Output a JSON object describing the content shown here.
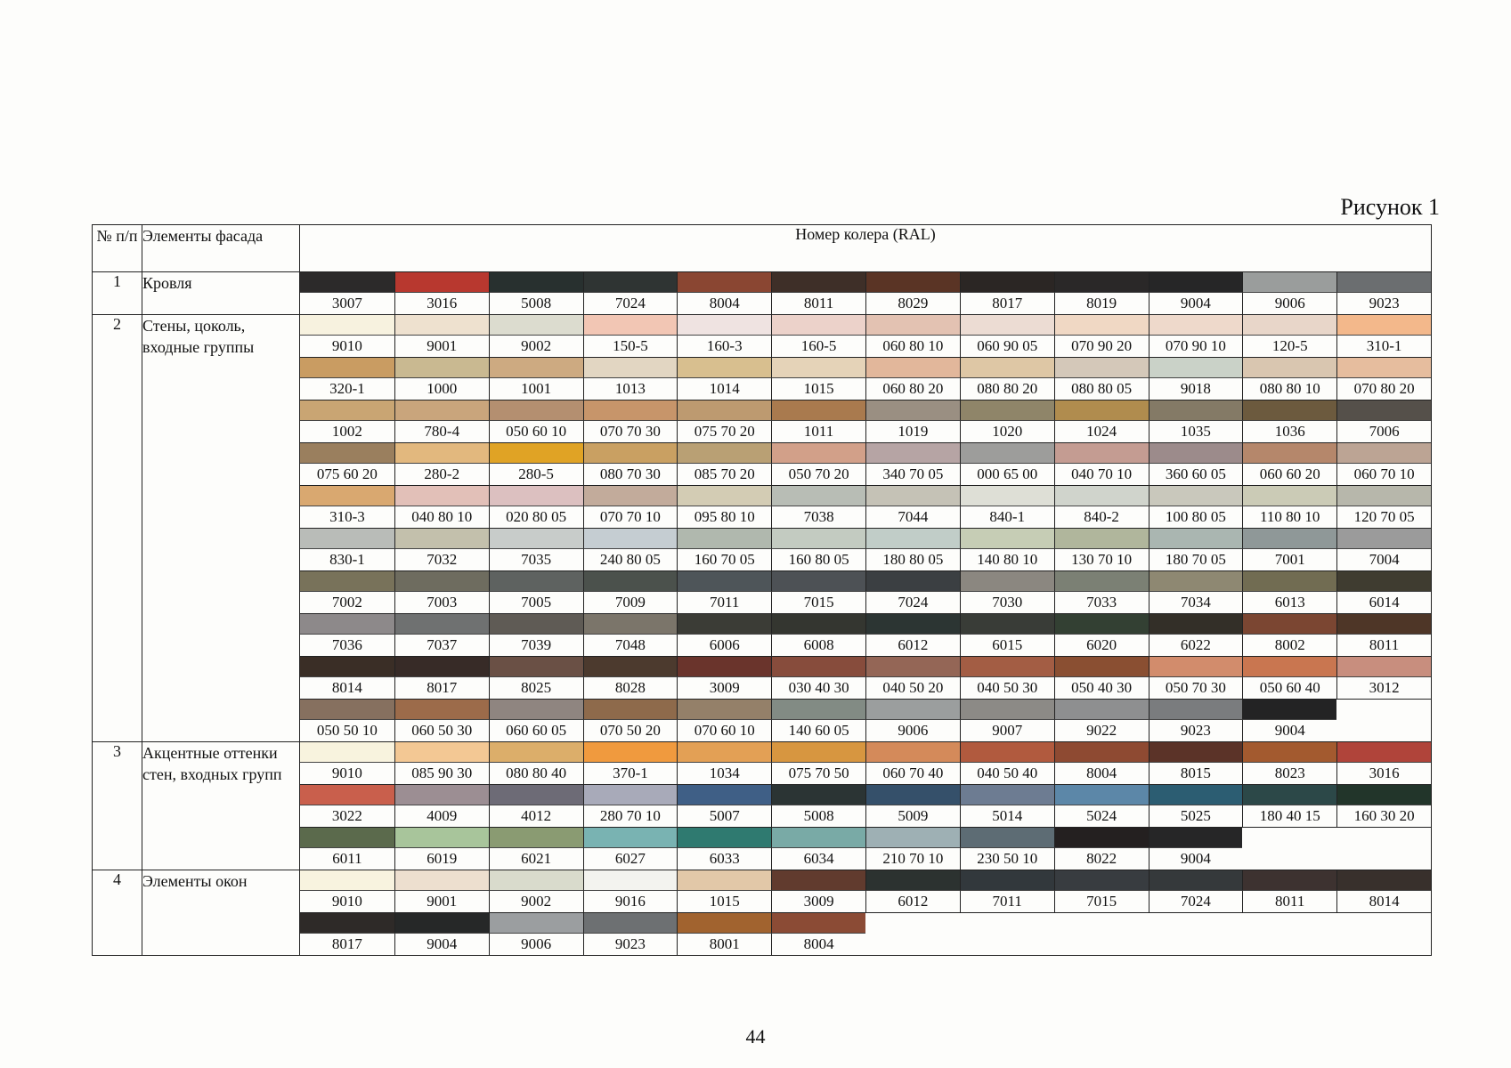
{
  "figure_label": "Рисунок 1",
  "page_number": "44",
  "header": {
    "num": "№ п/п",
    "elements": "Элементы фасада",
    "ral": "Номер колера (RAL)"
  },
  "sections": [
    {
      "num": "1",
      "name": "Кровля",
      "rows": [
        [
          {
            "code": "3007",
            "color": "#2c2a2a"
          },
          {
            "code": "3016",
            "color": "#b8382f"
          },
          {
            "code": "5008",
            "color": "#28302f"
          },
          {
            "code": "7024",
            "color": "#2f3433"
          },
          {
            "code": "8004",
            "color": "#8a4632"
          },
          {
            "code": "8011",
            "color": "#3e2f28"
          },
          {
            "code": "8029",
            "color": "#5a3425"
          },
          {
            "code": "8017",
            "color": "#2b2624"
          },
          {
            "code": "8019",
            "color": "#2a2828"
          },
          {
            "code": "9004",
            "color": "#262627"
          },
          {
            "code": "9006",
            "color": "#9a9d9c"
          },
          {
            "code": "9023",
            "color": "#6b6e70"
          }
        ]
      ]
    },
    {
      "num": "2",
      "name": "Стены, цоколь, входные группы",
      "rows": [
        [
          {
            "code": "9010",
            "color": "#f7f2df"
          },
          {
            "code": "9001",
            "color": "#eee1cf"
          },
          {
            "code": "9002",
            "color": "#dcdccf"
          },
          {
            "code": "150-5",
            "color": "#f2c6b4"
          },
          {
            "code": "160-3",
            "color": "#efe3e1"
          },
          {
            "code": "160-5",
            "color": "#ecd2ca"
          },
          {
            "code": "060 80 10",
            "color": "#e3c2b2"
          },
          {
            "code": "060 90 05",
            "color": "#ecdcd3"
          },
          {
            "code": "070 90 20",
            "color": "#f0d8c4"
          },
          {
            "code": "070 90 10",
            "color": "#eed9cb"
          },
          {
            "code": "120-5",
            "color": "#e8d6c9"
          },
          {
            "code": "310-1",
            "color": "#f3b88b"
          }
        ],
        [
          {
            "code": "320-1",
            "color": "#c99c62"
          },
          {
            "code": "1000",
            "color": "#c9b991"
          },
          {
            "code": "1001",
            "color": "#cdaa81"
          },
          {
            "code": "1013",
            "color": "#e2d6c2"
          },
          {
            "code": "1014",
            "color": "#d8bf8f"
          },
          {
            "code": "1015",
            "color": "#e5d3b8"
          },
          {
            "code": "060 80 20",
            "color": "#e2b79b"
          },
          {
            "code": "080 80 20",
            "color": "#dec7a5"
          },
          {
            "code": "080 80 05",
            "color": "#d4c8b9"
          },
          {
            "code": "9018",
            "color": "#cad2c8"
          },
          {
            "code": "080 80 10",
            "color": "#d9c6b0"
          },
          {
            "code": "070 80 20",
            "color": "#e6bd9e"
          }
        ],
        [
          {
            "code": "1002",
            "color": "#c9a573"
          },
          {
            "code": "780-4",
            "color": "#c9a57c"
          },
          {
            "code": "050 60 10",
            "color": "#b48f70"
          },
          {
            "code": "070 70 30",
            "color": "#c7956a"
          },
          {
            "code": "075 70 20",
            "color": "#bd9a70"
          },
          {
            "code": "1011",
            "color": "#a97a4e"
          },
          {
            "code": "1019",
            "color": "#9a8f82"
          },
          {
            "code": "1020",
            "color": "#8f8569"
          },
          {
            "code": "1024",
            "color": "#b08c4e"
          },
          {
            "code": "1035",
            "color": "#847a66"
          },
          {
            "code": "1036",
            "color": "#6c5a3e"
          },
          {
            "code": "7006",
            "color": "#55504a"
          }
        ],
        [
          {
            "code": "075 60 20",
            "color": "#9a7f5e"
          },
          {
            "code": "280-2",
            "color": "#e2b87e"
          },
          {
            "code": "280-5",
            "color": "#e0a325"
          },
          {
            "code": "080 70 30",
            "color": "#c9a062"
          },
          {
            "code": "085 70 20",
            "color": "#b9a074"
          },
          {
            "code": "050 70 20",
            "color": "#d2a089"
          },
          {
            "code": "340 70 05",
            "color": "#b6a4a4"
          },
          {
            "code": "000 65 00",
            "color": "#9d9d9b"
          },
          {
            "code": "040 70 10",
            "color": "#c49c92"
          },
          {
            "code": "360 60 05",
            "color": "#9c8b8b"
          },
          {
            "code": "060 60 20",
            "color": "#b5876b"
          },
          {
            "code": "060 70 10",
            "color": "#bca494"
          }
        ],
        [
          {
            "code": "310-3",
            "color": "#d9a870"
          },
          {
            "code": "040 80 10",
            "color": "#e2c0b8"
          },
          {
            "code": "020 80 05",
            "color": "#dcc0c0"
          },
          {
            "code": "070 70 10",
            "color": "#c2ab9b"
          },
          {
            "code": "095 80 10",
            "color": "#d3ccb4"
          },
          {
            "code": "7038",
            "color": "#b8bdb5"
          },
          {
            "code": "7044",
            "color": "#c5c2b6"
          },
          {
            "code": "840-1",
            "color": "#dedfd6"
          },
          {
            "code": "840-2",
            "color": "#d0d4cc"
          },
          {
            "code": "100 80 05",
            "color": "#c9c8bc"
          },
          {
            "code": "110 80 10",
            "color": "#cbcbb6"
          },
          {
            "code": "120 70 05",
            "color": "#b7b7ab"
          }
        ],
        [
          {
            "code": "830-1",
            "color": "#b9bcb8"
          },
          {
            "code": "7032",
            "color": "#c3c0ac"
          },
          {
            "code": "7035",
            "color": "#c8ccca"
          },
          {
            "code": "240 80 05",
            "color": "#c5cdd2"
          },
          {
            "code": "160 70 05",
            "color": "#b0b8ae"
          },
          {
            "code": "160 80 05",
            "color": "#c3cbc1"
          },
          {
            "code": "180 80 05",
            "color": "#c1cdc8"
          },
          {
            "code": "140 80 10",
            "color": "#c6cdb5"
          },
          {
            "code": "130 70 10",
            "color": "#b0b69c"
          },
          {
            "code": "180 70 05",
            "color": "#aab6b1"
          },
          {
            "code": "7001",
            "color": "#8f9898"
          },
          {
            "code": "7004",
            "color": "#9b9b9b"
          }
        ],
        [
          {
            "code": "7002",
            "color": "#78725a"
          },
          {
            "code": "7003",
            "color": "#6e6c5f"
          },
          {
            "code": "7005",
            "color": "#5e6260"
          },
          {
            "code": "7009",
            "color": "#4b514c"
          },
          {
            "code": "7011",
            "color": "#4e5559"
          },
          {
            "code": "7015",
            "color": "#4d5155"
          },
          {
            "code": "7024",
            "color": "#3b3f42"
          },
          {
            "code": "7030",
            "color": "#8b8780"
          },
          {
            "code": "7033",
            "color": "#7b8074"
          },
          {
            "code": "7034",
            "color": "#8e8872"
          },
          {
            "code": "6013",
            "color": "#716c52"
          },
          {
            "code": "6014",
            "color": "#3f3c30"
          }
        ],
        [
          {
            "code": "7036",
            "color": "#8d898a"
          },
          {
            "code": "7037",
            "color": "#6f7171"
          },
          {
            "code": "7039",
            "color": "#5f5b55"
          },
          {
            "code": "7048",
            "color": "#7b756a"
          },
          {
            "code": "6006",
            "color": "#3b3c36"
          },
          {
            "code": "6008",
            "color": "#343630"
          },
          {
            "code": "6012",
            "color": "#2c3533"
          },
          {
            "code": "6015",
            "color": "#393c37"
          },
          {
            "code": "6020",
            "color": "#334033"
          },
          {
            "code": "6022",
            "color": "#332f28"
          },
          {
            "code": "8002",
            "color": "#7b4632"
          },
          {
            "code": "8011",
            "color": "#4e3627"
          }
        ],
        [
          {
            "code": "8014",
            "color": "#3a2e26"
          },
          {
            "code": "8017",
            "color": "#372b27"
          },
          {
            "code": "8025",
            "color": "#6a5045"
          },
          {
            "code": "8028",
            "color": "#4c3a2e"
          },
          {
            "code": "3009",
            "color": "#6a342c"
          },
          {
            "code": "030 40 30",
            "color": "#874c3c"
          },
          {
            "code": "040 50 20",
            "color": "#946656"
          },
          {
            "code": "040 50 30",
            "color": "#a35d44"
          },
          {
            "code": "050 40 30",
            "color": "#8a4f32"
          },
          {
            "code": "050 70 30",
            "color": "#d28c6c"
          },
          {
            "code": "050 60 40",
            "color": "#c97650"
          },
          {
            "code": "3012",
            "color": "#c88e7e"
          }
        ],
        [
          {
            "code": "050 50 10",
            "color": "#86705f"
          },
          {
            "code": "060 50 30",
            "color": "#9c6b4a"
          },
          {
            "code": "060 60 05",
            "color": "#8f8580"
          },
          {
            "code": "070 50 20",
            "color": "#8e6a4b"
          },
          {
            "code": "070 60 10",
            "color": "#948069"
          },
          {
            "code": "140 60 05",
            "color": "#828b84"
          },
          {
            "code": "9006",
            "color": "#9b9e9e"
          },
          {
            "code": "9007",
            "color": "#8c8a86"
          },
          {
            "code": "9022",
            "color": "#8e8f90"
          },
          {
            "code": "9023",
            "color": "#7a7c7e"
          },
          {
            "code": "9004",
            "color": "#232324"
          },
          {
            "code": "",
            "color": ""
          }
        ]
      ]
    },
    {
      "num": "3",
      "name": "Акцентные оттенки стен, входных групп",
      "rows": [
        [
          {
            "code": "9010",
            "color": "#f8f3de"
          },
          {
            "code": "085 90 30",
            "color": "#f3c894"
          },
          {
            "code": "080 80 40",
            "color": "#dcae6a"
          },
          {
            "code": "370-1",
            "color": "#f09a3e"
          },
          {
            "code": "1034",
            "color": "#e3a055"
          },
          {
            "code": "075 70 50",
            "color": "#d79640"
          },
          {
            "code": "060 70 40",
            "color": "#d48a5a"
          },
          {
            "code": "040 50 40",
            "color": "#b15a3e"
          },
          {
            "code": "8004",
            "color": "#8e4a32"
          },
          {
            "code": "8015",
            "color": "#5b3328"
          },
          {
            "code": "8023",
            "color": "#a35a2f"
          },
          {
            "code": "3016",
            "color": "#b0443a"
          }
        ],
        [
          {
            "code": "3022",
            "color": "#c95f4c"
          },
          {
            "code": "4009",
            "color": "#9c8e93"
          },
          {
            "code": "4012",
            "color": "#6d6b76"
          },
          {
            "code": "280 70 10",
            "color": "#a8aab9"
          },
          {
            "code": "5007",
            "color": "#3f5f86"
          },
          {
            "code": "5008",
            "color": "#2b3434"
          },
          {
            "code": "5009",
            "color": "#35506a"
          },
          {
            "code": "5014",
            "color": "#6d7c92"
          },
          {
            "code": "5024",
            "color": "#5c87a8"
          },
          {
            "code": "5025",
            "color": "#2c5d72"
          },
          {
            "code": "180 40 15",
            "color": "#2c4848"
          },
          {
            "code": "160 30 20",
            "color": "#22352a"
          }
        ],
        [
          {
            "code": "6011",
            "color": "#5b6a4c"
          },
          {
            "code": "6019",
            "color": "#a8c59b"
          },
          {
            "code": "6021",
            "color": "#8a9b72"
          },
          {
            "code": "6027",
            "color": "#79b3b2"
          },
          {
            "code": "6033",
            "color": "#2f7a70"
          },
          {
            "code": "6034",
            "color": "#79aaa6"
          },
          {
            "code": "210 70 10",
            "color": "#9eb0b4"
          },
          {
            "code": "230 50 10",
            "color": "#5d6c74"
          },
          {
            "code": "8022",
            "color": "#242020"
          },
          {
            "code": "9004",
            "color": "#262627"
          },
          {
            "code": "",
            "color": ""
          },
          {
            "code": "",
            "color": ""
          }
        ]
      ]
    },
    {
      "num": "4",
      "name": "Элементы окон",
      "rows": [
        [
          {
            "code": "9010",
            "color": "#f8f3df"
          },
          {
            "code": "9001",
            "color": "#eddfcf"
          },
          {
            "code": "9002",
            "color": "#d9dbcc"
          },
          {
            "code": "9016",
            "color": "#f3f3ef"
          },
          {
            "code": "1015",
            "color": "#e2c8a8"
          },
          {
            "code": "3009",
            "color": "#613b2e"
          },
          {
            "code": "6012",
            "color": "#2c3230"
          },
          {
            "code": "7011",
            "color": "#32383c"
          },
          {
            "code": "7015",
            "color": "#383c40"
          },
          {
            "code": "7024",
            "color": "#35393b"
          },
          {
            "code": "8011",
            "color": "#3d3230"
          },
          {
            "code": "8014",
            "color": "#38302c"
          }
        ],
        [
          {
            "code": "8017",
            "color": "#2e2a28"
          },
          {
            "code": "9004",
            "color": "#262828"
          },
          {
            "code": "9006",
            "color": "#9b9ea0"
          },
          {
            "code": "9023",
            "color": "#6d7072"
          },
          {
            "code": "8001",
            "color": "#a1632f"
          },
          {
            "code": "8004",
            "color": "#8b4b35"
          },
          {
            "code": "",
            "color": ""
          },
          {
            "code": "",
            "color": ""
          },
          {
            "code": "",
            "color": ""
          },
          {
            "code": "",
            "color": ""
          },
          {
            "code": "",
            "color": ""
          },
          {
            "code": "",
            "color": ""
          }
        ]
      ]
    }
  ]
}
